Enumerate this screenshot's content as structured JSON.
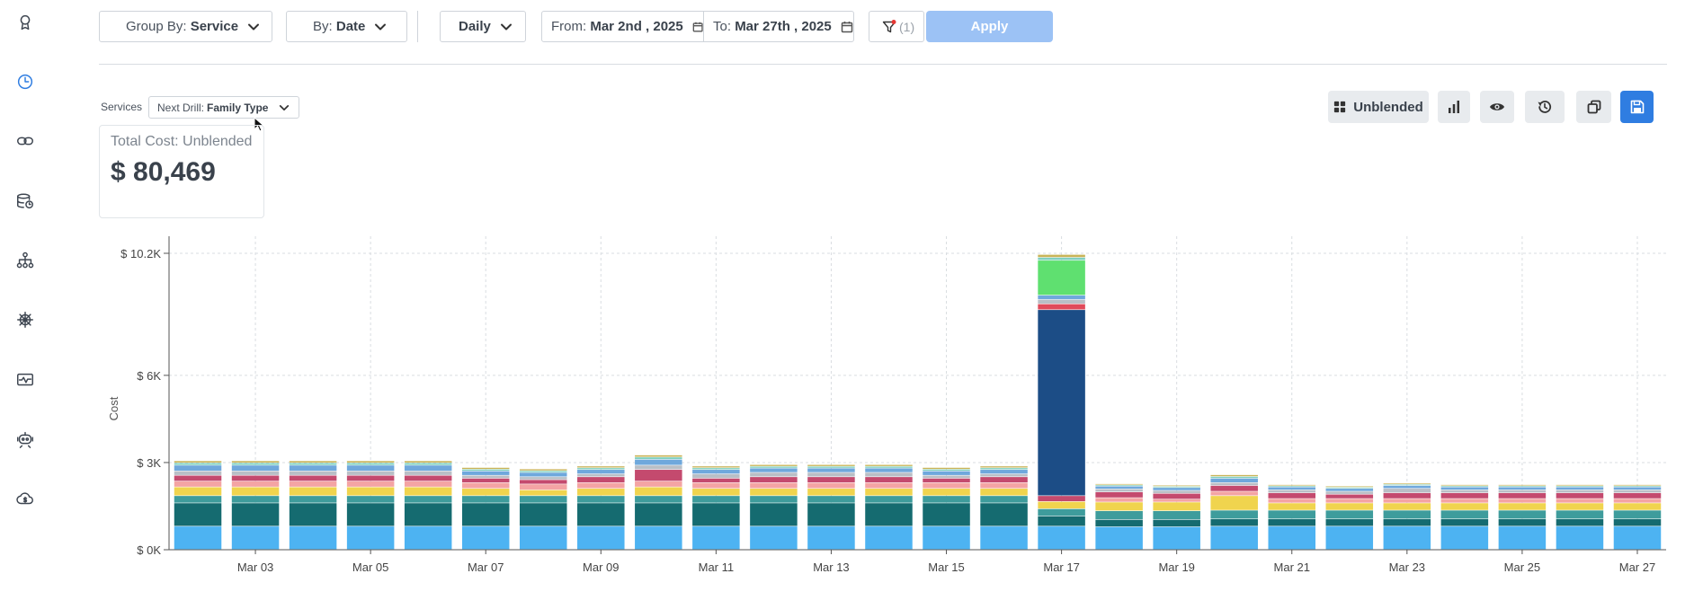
{
  "toolbar": {
    "group_by_prefix": "Group By:",
    "group_by_value": "Service",
    "by_prefix": "By:",
    "by_value": "Date",
    "granularity": "Daily",
    "from_prefix": "From:",
    "from_value": "Mar 2nd , 2025",
    "to_prefix": "To:",
    "to_value": "Mar 27th , 2025",
    "filter_count": "(1)",
    "apply_label": "Apply"
  },
  "drill": {
    "services_label": "Services",
    "next_drill_prefix": "Next Drill:",
    "next_drill_value": "Family Type"
  },
  "cost_card": {
    "title": "Total Cost: Unblended",
    "value": "$ 80,469"
  },
  "tools": {
    "cost_type_label": "Unblended"
  },
  "colors": {
    "accent": "#2f7de1",
    "apply_disabled": "#9cc2f5",
    "filter_dot": "#e53935"
  },
  "chart_data": {
    "type": "bar",
    "stacked": true,
    "ylabel": "Cost",
    "y_ticks": [
      {
        "value": 0,
        "label": "$ 0K"
      },
      {
        "value": 3000,
        "label": "$ 3K"
      },
      {
        "value": 6000,
        "label": "$ 6K"
      },
      {
        "value": 10200,
        "label": "$ 10.2K"
      }
    ],
    "ylim": [
      0,
      10200
    ],
    "grid": true,
    "categories": [
      "Mar 02",
      "Mar 03",
      "Mar 04",
      "Mar 05",
      "Mar 06",
      "Mar 07",
      "Mar 08",
      "Mar 09",
      "Mar 10",
      "Mar 11",
      "Mar 12",
      "Mar 13",
      "Mar 14",
      "Mar 15",
      "Mar 16",
      "Mar 17",
      "Mar 18",
      "Mar 19",
      "Mar 20",
      "Mar 21",
      "Mar 22",
      "Mar 23",
      "Mar 24",
      "Mar 25",
      "Mar 26",
      "Mar 27"
    ],
    "x_tick_labels": [
      "Mar 03",
      "Mar 05",
      "Mar 07",
      "Mar 09",
      "Mar 11",
      "Mar 13",
      "Mar 15",
      "Mar 17",
      "Mar 19",
      "Mar 21",
      "Mar 23",
      "Mar 25",
      "Mar 27"
    ],
    "series": [
      {
        "color": "#4db3f2",
        "values": [
          800,
          800,
          800,
          800,
          800,
          800,
          800,
          800,
          800,
          800,
          800,
          800,
          800,
          800,
          800,
          800,
          780,
          780,
          800,
          800,
          800,
          800,
          800,
          800,
          800,
          800
        ]
      },
      {
        "color": "#156b70",
        "values": [
          800,
          800,
          800,
          800,
          800,
          800,
          800,
          800,
          800,
          800,
          800,
          800,
          800,
          800,
          800,
          350,
          250,
          250,
          250,
          250,
          250,
          250,
          250,
          250,
          250,
          250
        ]
      },
      {
        "color": "#3e9c9c",
        "values": [
          250,
          250,
          250,
          250,
          250,
          250,
          250,
          250,
          250,
          250,
          250,
          250,
          250,
          250,
          250,
          250,
          300,
          300,
          300,
          300,
          300,
          300,
          300,
          300,
          300,
          300
        ]
      },
      {
        "color": "#f0d44e",
        "values": [
          300,
          300,
          300,
          300,
          300,
          250,
          200,
          250,
          300,
          250,
          250,
          250,
          250,
          250,
          250,
          250,
          300,
          300,
          500,
          250,
          250,
          250,
          250,
          250,
          250,
          250
        ]
      },
      {
        "color": "#f4a4a4",
        "values": [
          200,
          200,
          200,
          200,
          200,
          200,
          200,
          200,
          200,
          200,
          200,
          200,
          200,
          200,
          200,
          0,
          150,
          100,
          150,
          150,
          150,
          150,
          150,
          150,
          150,
          150
        ]
      },
      {
        "color": "#c44a6e",
        "values": [
          200,
          200,
          200,
          200,
          200,
          150,
          150,
          200,
          400,
          150,
          200,
          200,
          200,
          150,
          200,
          200,
          200,
          200,
          200,
          200,
          150,
          200,
          200,
          200,
          200,
          200
        ]
      },
      {
        "color": "#1c4d86",
        "values": [
          0,
          0,
          0,
          0,
          0,
          0,
          0,
          0,
          0,
          0,
          0,
          0,
          0,
          0,
          0,
          6400,
          0,
          0,
          0,
          0,
          0,
          0,
          0,
          0,
          0,
          0
        ]
      },
      {
        "color": "#e04a5a",
        "values": [
          0,
          0,
          0,
          0,
          0,
          0,
          0,
          0,
          0,
          0,
          0,
          0,
          0,
          0,
          0,
          200,
          0,
          0,
          0,
          0,
          0,
          0,
          0,
          0,
          0,
          0
        ]
      },
      {
        "color": "#b9bfc6",
        "values": [
          150,
          150,
          150,
          150,
          150,
          100,
          100,
          100,
          150,
          150,
          150,
          150,
          150,
          100,
          100,
          150,
          100,
          100,
          100,
          100,
          100,
          150,
          100,
          100,
          100,
          100
        ]
      },
      {
        "color": "#6fa8dc",
        "values": [
          200,
          200,
          200,
          200,
          200,
          150,
          150,
          150,
          200,
          150,
          150,
          150,
          150,
          150,
          150,
          150,
          100,
          100,
          150,
          100,
          100,
          100,
          100,
          100,
          100,
          100
        ]
      },
      {
        "color": "#5fe070",
        "values": [
          0,
          0,
          0,
          0,
          0,
          0,
          0,
          0,
          0,
          0,
          0,
          0,
          0,
          0,
          0,
          1200,
          0,
          0,
          0,
          0,
          0,
          0,
          0,
          0,
          0,
          0
        ]
      },
      {
        "color": "#7fd0c0",
        "values": [
          80,
          80,
          80,
          80,
          80,
          60,
          60,
          60,
          80,
          60,
          60,
          60,
          60,
          60,
          60,
          100,
          40,
          40,
          60,
          40,
          40,
          40,
          40,
          40,
          40,
          40
        ]
      },
      {
        "color": "#c9b458",
        "values": [
          70,
          70,
          70,
          70,
          70,
          60,
          60,
          60,
          70,
          60,
          60,
          60,
          60,
          60,
          60,
          100,
          40,
          40,
          60,
          40,
          40,
          40,
          40,
          40,
          40,
          40
        ]
      }
    ]
  }
}
